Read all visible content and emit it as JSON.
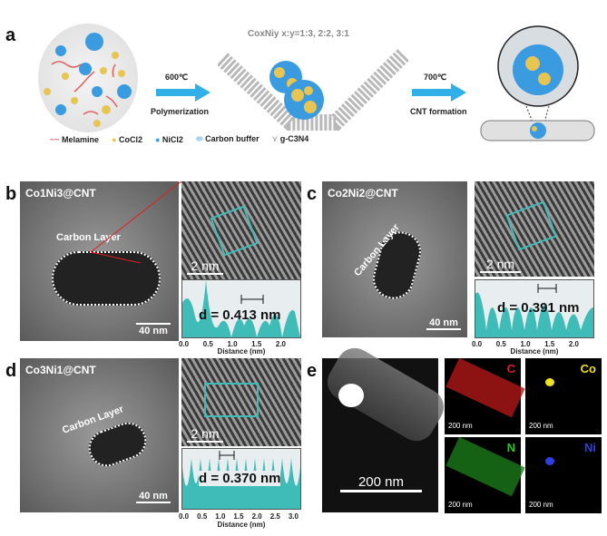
{
  "panel_a": {
    "label": "a",
    "composition": "CoxNiy  x:y=1:3, 2:2, 3:1",
    "step1_temp": "600℃",
    "step1_name": "Polymerization",
    "step2_temp": "700℃",
    "step2_name": "CNT formation",
    "legend": [
      "Melamine",
      "CoCl2",
      "NiCl2",
      "Carbon buffer",
      "g-C3N4"
    ],
    "colors": {
      "co": "#e8c552",
      "ni": "#3a9be0",
      "arrow": "#31b0e8",
      "melamine": "#e06060"
    }
  },
  "panel_b": {
    "label": "b",
    "sample": "Co1Ni3@CNT",
    "layer": "Carbon Layer",
    "scale_tem": "40 nm",
    "scale_hr": "2 nm",
    "d": "d = 0.413 nm",
    "ticks": [
      "0.0",
      "0.5",
      "1.0",
      "1.5",
      "2.0"
    ],
    "xlabel": "Distance (nm)",
    "line_color": "#e02020"
  },
  "panel_c": {
    "label": "c",
    "sample": "Co2Ni2@CNT",
    "layer": "Carbon Layer",
    "scale_tem": "40 nm",
    "scale_hr": "2 nm",
    "d": "d = 0.391 nm",
    "ticks": [
      "0.0",
      "0.5",
      "1.0",
      "1.5",
      "2.0"
    ],
    "xlabel": "Distance (nm)",
    "line_color": "#7a3fb0"
  },
  "panel_d": {
    "label": "d",
    "sample": "Co3Ni1@CNT",
    "layer": "Carbon Layer",
    "scale_tem": "40 nm",
    "scale_hr": "2 nm",
    "d": "d = 0.370 nm",
    "ticks": [
      "0.0",
      "0.5",
      "1.0",
      "1.5",
      "2.0",
      "2.5",
      "3.0"
    ],
    "xlabel": "Distance (nm)",
    "line_color": "#8ccf7a"
  },
  "panel_e": {
    "label": "e",
    "scale_main": "200 nm",
    "maps": [
      {
        "element": "C",
        "color": "#e02020",
        "scale": "200 nm"
      },
      {
        "element": "Co",
        "color": "#f0e020",
        "scale": "200 nm"
      },
      {
        "element": "N",
        "color": "#30c030",
        "scale": "200 nm"
      },
      {
        "element": "Ni",
        "color": "#3040e0",
        "scale": "200 nm"
      }
    ]
  },
  "profile_color": "#3fbcb8"
}
